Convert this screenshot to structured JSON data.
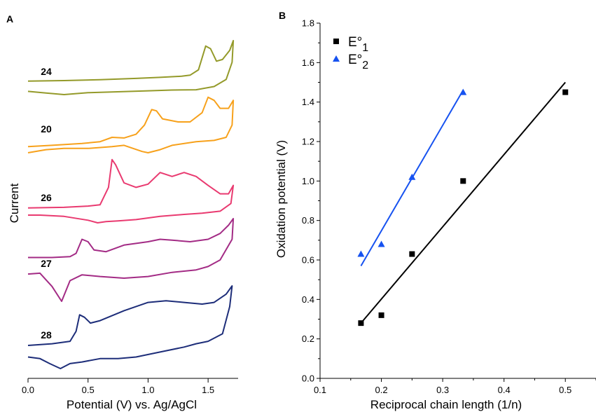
{
  "chart_data": [
    {
      "panel": "A",
      "type": "line",
      "xlabel": "Potential (V) vs. Ag/AgCl",
      "ylabel": "Current",
      "xlim": [
        0.0,
        1.75
      ],
      "xticks": [
        "0.0",
        "0.5",
        "1.0",
        "1.5"
      ],
      "series": [
        {
          "name": "24",
          "color": "#949a2a",
          "forward": [
            [
              0.0,
              0.25
            ],
            [
              0.3,
              0.26
            ],
            [
              0.6,
              0.275
            ],
            [
              0.9,
              0.3
            ],
            [
              1.1,
              0.32
            ],
            [
              1.28,
              0.34
            ],
            [
              1.35,
              0.36
            ],
            [
              1.42,
              0.46
            ],
            [
              1.48,
              0.9
            ],
            [
              1.52,
              0.85
            ],
            [
              1.57,
              0.62
            ],
            [
              1.62,
              0.65
            ],
            [
              1.68,
              0.82
            ],
            [
              1.71,
              1.0
            ]
          ],
          "reverse": [
            [
              1.71,
              1.0
            ],
            [
              1.7,
              0.6
            ],
            [
              1.65,
              0.28
            ],
            [
              1.55,
              0.15
            ],
            [
              1.4,
              0.09
            ],
            [
              1.2,
              0.085
            ],
            [
              1.0,
              0.07
            ],
            [
              0.7,
              0.05
            ],
            [
              0.5,
              0.035
            ],
            [
              0.3,
              0.0
            ],
            [
              0.15,
              0.03
            ],
            [
              0.0,
              0.06
            ]
          ]
        },
        {
          "name": "20",
          "color": "#f7a11b",
          "forward": [
            [
              0.0,
              0.1
            ],
            [
              0.2,
              0.12
            ],
            [
              0.45,
              0.15
            ],
            [
              0.6,
              0.18
            ],
            [
              0.7,
              0.25
            ],
            [
              0.8,
              0.24
            ],
            [
              0.9,
              0.3
            ],
            [
              0.97,
              0.45
            ],
            [
              1.03,
              0.7
            ],
            [
              1.07,
              0.68
            ],
            [
              1.12,
              0.55
            ],
            [
              1.25,
              0.5
            ],
            [
              1.35,
              0.5
            ],
            [
              1.45,
              0.65
            ],
            [
              1.5,
              0.9
            ],
            [
              1.55,
              0.85
            ],
            [
              1.6,
              0.72
            ],
            [
              1.67,
              0.72
            ],
            [
              1.71,
              0.85
            ]
          ],
          "reverse": [
            [
              1.71,
              0.85
            ],
            [
              1.7,
              0.45
            ],
            [
              1.65,
              0.25
            ],
            [
              1.55,
              0.2
            ],
            [
              1.4,
              0.18
            ],
            [
              1.2,
              0.12
            ],
            [
              1.1,
              0.05
            ],
            [
              1.0,
              0.0
            ],
            [
              0.95,
              0.02
            ],
            [
              0.8,
              0.12
            ],
            [
              0.7,
              0.1
            ],
            [
              0.5,
              0.07
            ],
            [
              0.3,
              0.07
            ],
            [
              0.15,
              0.05
            ],
            [
              0.0,
              0.0
            ]
          ]
        },
        {
          "name": "26",
          "color": "#e93a70",
          "forward": [
            [
              0.0,
              0.23
            ],
            [
              0.3,
              0.24
            ],
            [
              0.5,
              0.26
            ],
            [
              0.6,
              0.28
            ],
            [
              0.67,
              0.55
            ],
            [
              0.7,
              0.98
            ],
            [
              0.73,
              0.9
            ],
            [
              0.8,
              0.62
            ],
            [
              0.9,
              0.55
            ],
            [
              1.0,
              0.6
            ],
            [
              1.1,
              0.78
            ],
            [
              1.2,
              0.72
            ],
            [
              1.3,
              0.78
            ],
            [
              1.4,
              0.72
            ],
            [
              1.5,
              0.58
            ],
            [
              1.6,
              0.45
            ],
            [
              1.67,
              0.45
            ],
            [
              1.71,
              0.58
            ]
          ],
          "reverse": [
            [
              1.71,
              0.58
            ],
            [
              1.69,
              0.3
            ],
            [
              1.6,
              0.18
            ],
            [
              1.45,
              0.15
            ],
            [
              1.3,
              0.13
            ],
            [
              1.1,
              0.1
            ],
            [
              0.9,
              0.05
            ],
            [
              0.75,
              0.03
            ],
            [
              0.65,
              0.02
            ],
            [
              0.58,
              0.0
            ],
            [
              0.5,
              0.04
            ],
            [
              0.3,
              0.1
            ],
            [
              0.1,
              0.12
            ],
            [
              0.0,
              0.12
            ]
          ]
        },
        {
          "name": "27",
          "color": "#a32b85",
          "forward": [
            [
              0.0,
              0.53
            ],
            [
              0.2,
              0.53
            ],
            [
              0.35,
              0.54
            ],
            [
              0.4,
              0.58
            ],
            [
              0.45,
              0.75
            ],
            [
              0.5,
              0.72
            ],
            [
              0.55,
              0.62
            ],
            [
              0.65,
              0.6
            ],
            [
              0.8,
              0.68
            ],
            [
              0.9,
              0.7
            ],
            [
              1.0,
              0.72
            ],
            [
              1.1,
              0.75
            ],
            [
              1.2,
              0.74
            ],
            [
              1.35,
              0.72
            ],
            [
              1.5,
              0.75
            ],
            [
              1.6,
              0.82
            ],
            [
              1.67,
              0.92
            ],
            [
              1.71,
              1.0
            ]
          ],
          "reverse": [
            [
              1.71,
              1.0
            ],
            [
              1.7,
              0.75
            ],
            [
              1.6,
              0.5
            ],
            [
              1.5,
              0.42
            ],
            [
              1.4,
              0.38
            ],
            [
              1.2,
              0.35
            ],
            [
              1.0,
              0.3
            ],
            [
              0.8,
              0.28
            ],
            [
              0.6,
              0.3
            ],
            [
              0.45,
              0.32
            ],
            [
              0.35,
              0.25
            ],
            [
              0.28,
              0.0
            ],
            [
              0.2,
              0.18
            ],
            [
              0.1,
              0.34
            ],
            [
              0.0,
              0.33
            ]
          ]
        },
        {
          "name": "28",
          "color": "#1d2d79",
          "forward": [
            [
              0.0,
              0.28
            ],
            [
              0.2,
              0.3
            ],
            [
              0.35,
              0.33
            ],
            [
              0.4,
              0.45
            ],
            [
              0.43,
              0.65
            ],
            [
              0.47,
              0.62
            ],
            [
              0.52,
              0.55
            ],
            [
              0.6,
              0.58
            ],
            [
              0.8,
              0.7
            ],
            [
              1.0,
              0.8
            ],
            [
              1.15,
              0.82
            ],
            [
              1.3,
              0.8
            ],
            [
              1.45,
              0.78
            ],
            [
              1.55,
              0.8
            ],
            [
              1.65,
              0.9
            ],
            [
              1.7,
              1.0
            ]
          ],
          "reverse": [
            [
              1.7,
              1.0
            ],
            [
              1.68,
              0.75
            ],
            [
              1.62,
              0.42
            ],
            [
              1.5,
              0.33
            ],
            [
              1.4,
              0.3
            ],
            [
              1.3,
              0.26
            ],
            [
              1.1,
              0.2
            ],
            [
              0.9,
              0.14
            ],
            [
              0.75,
              0.12
            ],
            [
              0.6,
              0.12
            ],
            [
              0.45,
              0.08
            ],
            [
              0.35,
              0.06
            ],
            [
              0.27,
              0.0
            ],
            [
              0.18,
              0.06
            ],
            [
              0.1,
              0.12
            ],
            [
              0.0,
              0.14
            ]
          ]
        }
      ]
    },
    {
      "panel": "B",
      "type": "scatter",
      "xlabel": "Reciprocal chain length (1/n)",
      "ylabel": "Oxidation potential (V)",
      "xlim": [
        0.1,
        0.55
      ],
      "ylim": [
        0.0,
        1.8
      ],
      "xticks": [
        "0.1",
        "0.2",
        "0.3",
        "0.4",
        "0.5"
      ],
      "yticks": [
        "0.0",
        "0.2",
        "0.4",
        "0.6",
        "0.8",
        "1.0",
        "1.2",
        "1.4",
        "1.6",
        "1.8"
      ],
      "series": [
        {
          "name_base": "E°",
          "name_sub": "1",
          "marker": "square",
          "color": "#000000",
          "points": [
            [
              0.1667,
              0.28
            ],
            [
              0.2,
              0.32
            ],
            [
              0.25,
              0.63
            ],
            [
              0.3333,
              1.0
            ],
            [
              0.5,
              1.45
            ]
          ],
          "fit": [
            [
              0.1667,
              0.28
            ],
            [
              0.5,
              1.5
            ]
          ]
        },
        {
          "name_base": "E°",
          "name_sub": "2",
          "marker": "triangle",
          "color": "#1652f0",
          "points": [
            [
              0.1667,
              0.63
            ],
            [
              0.2,
              0.68
            ],
            [
              0.25,
              1.02
            ],
            [
              0.3333,
              1.45
            ]
          ],
          "fit": [
            [
              0.1667,
              0.57
            ],
            [
              0.3333,
              1.46
            ]
          ]
        }
      ]
    }
  ]
}
